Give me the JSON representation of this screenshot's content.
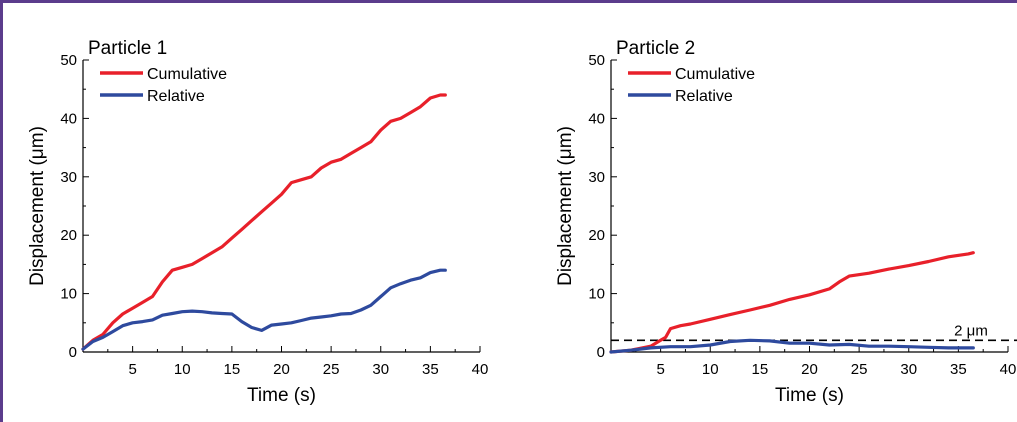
{
  "chart_data": [
    {
      "type": "line",
      "title": "Particle 1",
      "xlabel": "Time (s)",
      "ylabel": "Displacement (μm)",
      "xlim": [
        0,
        40
      ],
      "ylim": [
        0,
        50
      ],
      "xticks": [
        5,
        10,
        15,
        20,
        25,
        30,
        35,
        40
      ],
      "yticks": [
        0,
        10,
        20,
        30,
        40,
        50
      ],
      "grid": false,
      "legend_position": "top-left",
      "series": [
        {
          "name": "Cumulative",
          "color": "#e8202a",
          "x": [
            0,
            1,
            2,
            3,
            4,
            5,
            6,
            7,
            8,
            9,
            10,
            11,
            12,
            13,
            14,
            15,
            16,
            17,
            18,
            19,
            20,
            21,
            22,
            23,
            24,
            25,
            26,
            27,
            28,
            29,
            30,
            31,
            32,
            33,
            34,
            35,
            36,
            36.5
          ],
          "y": [
            0.5,
            2,
            3,
            5,
            6.5,
            7.5,
            8.5,
            9.5,
            12,
            14,
            14.5,
            15,
            16,
            17,
            18,
            19.5,
            21,
            22.5,
            24,
            25.5,
            27,
            29,
            29.5,
            30,
            31.5,
            32.5,
            33,
            34,
            35,
            36,
            38,
            39.5,
            40,
            41,
            42,
            43.5,
            44,
            44
          ]
        },
        {
          "name": "Relative",
          "color": "#2e4a9e",
          "x": [
            0,
            1,
            2,
            3,
            4,
            5,
            6,
            7,
            8,
            9,
            10,
            11,
            12,
            13,
            14,
            15,
            16,
            17,
            18,
            19,
            20,
            21,
            22,
            23,
            24,
            25,
            26,
            27,
            28,
            29,
            30,
            31,
            32,
            33,
            34,
            35,
            36,
            36.5
          ],
          "y": [
            0.5,
            1.8,
            2.5,
            3.5,
            4.5,
            5,
            5.2,
            5.5,
            6.3,
            6.6,
            6.9,
            7,
            6.9,
            6.7,
            6.6,
            6.5,
            5.2,
            4.2,
            3.7,
            4.6,
            4.8,
            5,
            5.4,
            5.8,
            6,
            6.2,
            6.5,
            6.6,
            7.2,
            8,
            9.5,
            11,
            11.7,
            12.3,
            12.7,
            13.6,
            14,
            14
          ]
        }
      ]
    },
    {
      "type": "line",
      "title": "Particle 2",
      "xlabel": "Time (s)",
      "ylabel": "Displacement (μm)",
      "xlim": [
        0,
        40
      ],
      "ylim": [
        0,
        50
      ],
      "xticks": [
        5,
        10,
        15,
        20,
        25,
        30,
        35,
        40
      ],
      "yticks": [
        0,
        10,
        20,
        30,
        40,
        50
      ],
      "grid": false,
      "legend_position": "top-left",
      "series": [
        {
          "name": "Cumulative",
          "color": "#e8202a",
          "x": [
            0,
            2,
            4,
            5,
            5.5,
            6,
            7,
            8,
            10,
            12,
            14,
            16,
            18,
            20,
            22,
            23,
            24,
            26,
            28,
            30,
            32,
            34,
            36,
            36.5
          ],
          "y": [
            0,
            0.3,
            1,
            2,
            2.5,
            4,
            4.5,
            4.8,
            5.6,
            6.4,
            7.2,
            8,
            9,
            9.8,
            10.8,
            12,
            13,
            13.5,
            14.2,
            14.8,
            15.5,
            16.3,
            16.8,
            17
          ]
        },
        {
          "name": "Relative",
          "color": "#2e4a9e",
          "x": [
            0,
            2,
            4,
            6,
            8,
            10,
            12,
            14,
            16,
            18,
            20,
            22,
            24,
            26,
            28,
            30,
            32,
            34,
            36,
            36.5
          ],
          "y": [
            0,
            0.3,
            0.7,
            0.9,
            0.9,
            1.2,
            1.8,
            2,
            1.9,
            1.5,
            1.5,
            1.2,
            1.3,
            1,
            1,
            0.9,
            0.8,
            0.7,
            0.7,
            0.7
          ]
        }
      ],
      "reference_line": {
        "y": 2,
        "label": "2 μm",
        "style": "dashed"
      }
    }
  ]
}
